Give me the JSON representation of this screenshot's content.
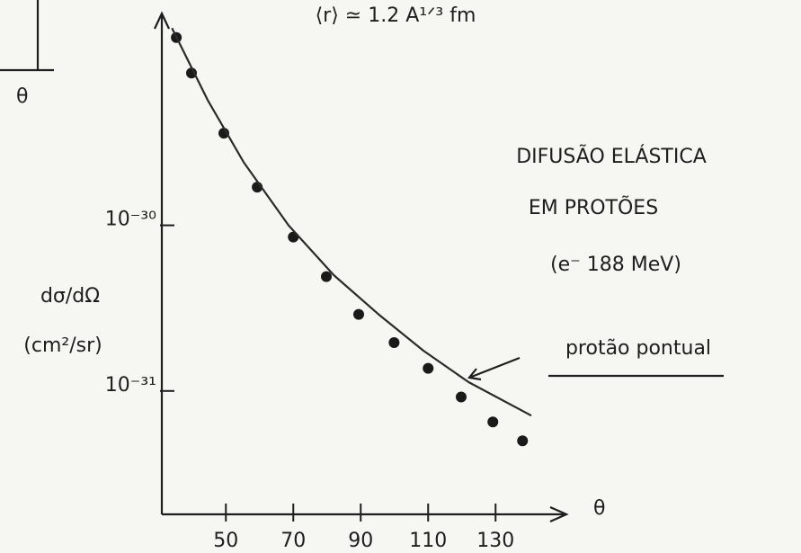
{
  "chart_data": {
    "type": "scatter",
    "title": "⟨r⟩ ≃ 1.2 A¹ᐟ³ fm",
    "inset_label": "θ",
    "annotations": [
      "DIFUSÃO ELÁSTICA",
      "EM PROTÕES",
      "(e⁻ 188 MeV)"
    ],
    "ylabel": "dσ/dΩ",
    "yunit": "(cm²/sr)",
    "xlabel": "θ",
    "log_y": true,
    "xlim": [
      31,
      151
    ],
    "ylim": [
      1.8e-32,
      1.9e-29
    ],
    "xticks": [
      50,
      70,
      90,
      110,
      130
    ],
    "yticks": [
      {
        "value": 1e-30,
        "label": "10⁻³⁰"
      },
      {
        "value": 1e-31,
        "label": "10⁻³¹"
      }
    ],
    "series": [
      {
        "type": "scatter",
        "color": "#1a1a1a",
        "x": [
          35.3,
          39.8,
          49.4,
          59.3,
          70,
          79.8,
          89.4,
          99.9,
          110,
          119.8,
          129.2,
          138
        ],
        "values": [
          1.36e-29,
          8.3e-30,
          3.6e-30,
          1.7e-30,
          8.5e-31,
          4.9e-31,
          2.9e-31,
          1.96e-31,
          1.37e-31,
          9.2e-32,
          6.5e-32,
          5e-32
        ]
      },
      {
        "type": "line",
        "name": "protão pontual",
        "color": "#2a2a2a",
        "x": [
          34,
          44.6,
          55.3,
          68.6,
          82,
          95.3,
          108.6,
          122,
          140.6
        ],
        "values": [
          1.55e-29,
          5.7e-30,
          2.4e-30,
          1e-30,
          5e-31,
          2.9e-31,
          1.75e-31,
          1.13e-31,
          7.1e-32
        ]
      }
    ]
  }
}
